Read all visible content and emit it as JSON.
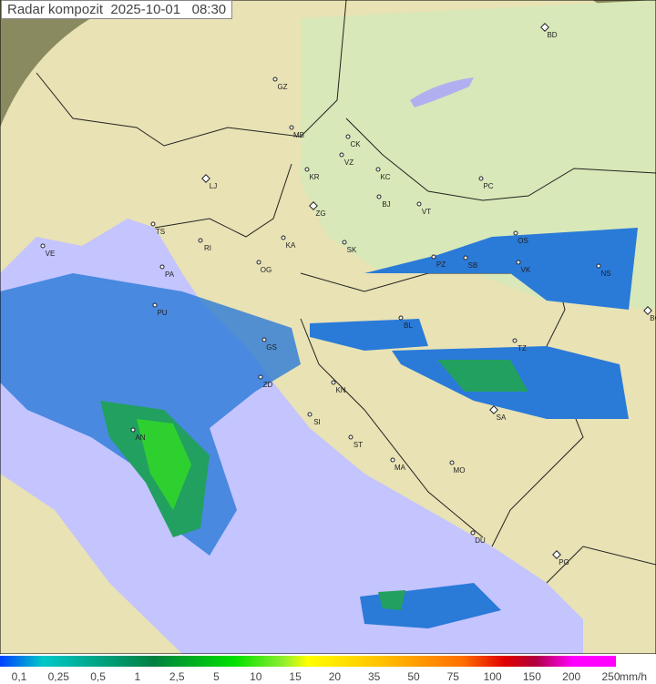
{
  "title": "Radar kompozit  2025-10-01   08:30",
  "colors": {
    "sea": "#c4c4ff",
    "terrain": "#e8e4b0",
    "outside": "#8a8a60",
    "rain_light": "#2a7ad8",
    "rain_mid": "#22a060",
    "rain_heavy": "#2ed030"
  },
  "cities": [
    {
      "label": "BD",
      "capital": true
    },
    {
      "label": "GZ"
    },
    {
      "label": "MB"
    },
    {
      "label": "CK"
    },
    {
      "label": "VZ"
    },
    {
      "label": "KR"
    },
    {
      "label": "KC"
    },
    {
      "label": "LJ",
      "capital": true
    },
    {
      "label": "PC"
    },
    {
      "label": "ZG",
      "capital": true
    },
    {
      "label": "BJ"
    },
    {
      "label": "VT"
    },
    {
      "label": "TS"
    },
    {
      "label": "VE"
    },
    {
      "label": "RI"
    },
    {
      "label": "KA"
    },
    {
      "label": "SK"
    },
    {
      "label": "OS"
    },
    {
      "label": "PA"
    },
    {
      "label": "OG"
    },
    {
      "label": "PZ"
    },
    {
      "label": "SB"
    },
    {
      "label": "VK"
    },
    {
      "label": "NS"
    },
    {
      "label": "PU"
    },
    {
      "label": "BL"
    },
    {
      "label": "BG",
      "capital": true
    },
    {
      "label": "GS"
    },
    {
      "label": "TZ"
    },
    {
      "label": "ZD"
    },
    {
      "label": "KN"
    },
    {
      "label": "SI"
    },
    {
      "label": "SA",
      "capital": true
    },
    {
      "label": "AN"
    },
    {
      "label": "ST"
    },
    {
      "label": "MA"
    },
    {
      "label": "MO"
    },
    {
      "label": "DU"
    },
    {
      "label": "PG",
      "capital": true
    }
  ],
  "legend": {
    "ticks": [
      "0,1",
      "0,25",
      "0,5",
      "1",
      "2,5",
      "5",
      "10",
      "15",
      "20",
      "35",
      "50",
      "75",
      "100",
      "150",
      "200",
      "250"
    ],
    "unit": "mm/h"
  }
}
